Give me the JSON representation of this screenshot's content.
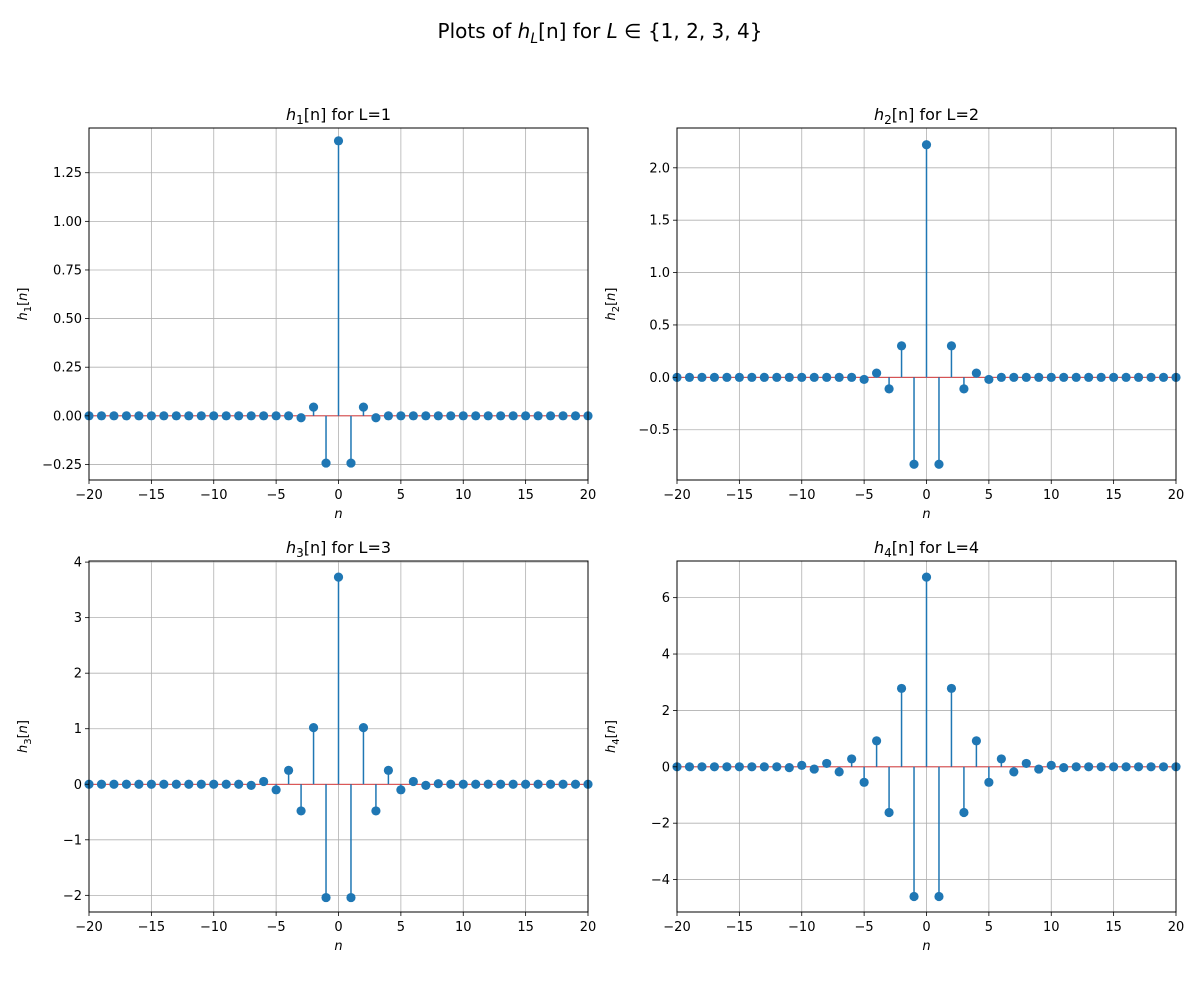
{
  "figure": {
    "title_prefix": "Plots of ",
    "title_h": "h",
    "title_sub": "L",
    "title_bracket": "[n]",
    "title_for": " for ",
    "title_var": "L",
    "title_set": " ∈ {1, 2, 3, 4}"
  },
  "chart_data": [
    {
      "type": "stem",
      "title_sub": "1",
      "title_suffix": "[n] for L=1",
      "ylabel_sub": "1",
      "xlabel": "n",
      "xlim": [
        -20,
        20
      ],
      "ylim": [
        -0.33,
        1.48
      ],
      "xticks": [
        -20,
        -15,
        -10,
        -5,
        0,
        5,
        10,
        15,
        20
      ],
      "xtick_labels": [
        "−20",
        "−15",
        "−10",
        "−5",
        "0",
        "5",
        "10",
        "15",
        "20"
      ],
      "yticks": [
        -0.25,
        0,
        0.25,
        0.5,
        0.75,
        1,
        1.25
      ],
      "ytick_labels": [
        "−0.25",
        "0.00",
        "0.25",
        "0.50",
        "0.75",
        "1.00",
        "1.25"
      ],
      "grid": true,
      "color": "#1f77b4",
      "x": [
        -20,
        -19,
        -18,
        -17,
        -16,
        -15,
        -14,
        -13,
        -12,
        -11,
        -10,
        -9,
        -8,
        -7,
        -6,
        -5,
        -4,
        -3,
        -2,
        -1,
        0,
        1,
        2,
        3,
        4,
        5,
        6,
        7,
        8,
        9,
        10,
        11,
        12,
        13,
        14,
        15,
        16,
        17,
        18,
        19,
        20
      ],
      "y": [
        0,
        0,
        0,
        0,
        0,
        0,
        0,
        0,
        0,
        0,
        0,
        0,
        0,
        0,
        0,
        0,
        0,
        -0.01,
        0.045,
        -0.243,
        1.414,
        -0.243,
        0.045,
        -0.01,
        0,
        0,
        0,
        0,
        0,
        0,
        0,
        0,
        0,
        0,
        0,
        0,
        0,
        0,
        0,
        0,
        0
      ]
    },
    {
      "type": "stem",
      "title_sub": "2",
      "title_suffix": "[n] for L=2",
      "ylabel_sub": "2",
      "xlabel": "n",
      "xlim": [
        -20,
        20
      ],
      "ylim": [
        -0.98,
        2.38
      ],
      "xticks": [
        -20,
        -15,
        -10,
        -5,
        0,
        5,
        10,
        15,
        20
      ],
      "xtick_labels": [
        "−20",
        "−15",
        "−10",
        "−5",
        "0",
        "5",
        "10",
        "15",
        "20"
      ],
      "yticks": [
        -0.5,
        0,
        0.5,
        1,
        1.5,
        2
      ],
      "ytick_labels": [
        "−0.5",
        "0.0",
        "0.5",
        "1.0",
        "1.5",
        "2.0"
      ],
      "grid": true,
      "color": "#1f77b4",
      "x": [
        -20,
        -19,
        -18,
        -17,
        -16,
        -15,
        -14,
        -13,
        -12,
        -11,
        -10,
        -9,
        -8,
        -7,
        -6,
        -5,
        -4,
        -3,
        -2,
        -1,
        0,
        1,
        2,
        3,
        4,
        5,
        6,
        7,
        8,
        9,
        10,
        11,
        12,
        13,
        14,
        15,
        16,
        17,
        18,
        19,
        20
      ],
      "y": [
        0,
        0,
        0,
        0,
        0,
        0,
        0,
        0,
        0,
        0,
        0,
        0,
        0,
        0,
        0,
        -0.02,
        0.04,
        -0.11,
        0.3,
        -0.83,
        2.22,
        -0.83,
        0.3,
        -0.11,
        0.04,
        -0.02,
        0,
        0,
        0,
        0,
        0,
        0,
        0,
        0,
        0,
        0,
        0,
        0,
        0,
        0,
        0
      ]
    },
    {
      "type": "stem",
      "title_sub": "3",
      "title_suffix": "[n] for L=3",
      "ylabel_sub": "3",
      "xlabel": "n",
      "xlim": [
        -20,
        20
      ],
      "ylim": [
        -2.3,
        4.02
      ],
      "xticks": [
        -20,
        -15,
        -10,
        -5,
        0,
        5,
        10,
        15,
        20
      ],
      "xtick_labels": [
        "−20",
        "−15",
        "−10",
        "−5",
        "0",
        "5",
        "10",
        "15",
        "20"
      ],
      "yticks": [
        -2,
        -1,
        0,
        1,
        2,
        3,
        4
      ],
      "ytick_labels": [
        "−2",
        "−1",
        "0",
        "1",
        "2",
        "3",
        "4"
      ],
      "grid": true,
      "color": "#1f77b4",
      "x": [
        -20,
        -19,
        -18,
        -17,
        -16,
        -15,
        -14,
        -13,
        -12,
        -11,
        -10,
        -9,
        -8,
        -7,
        -6,
        -5,
        -4,
        -3,
        -2,
        -1,
        0,
        1,
        2,
        3,
        4,
        5,
        6,
        7,
        8,
        9,
        10,
        11,
        12,
        13,
        14,
        15,
        16,
        17,
        18,
        19,
        20
      ],
      "y": [
        0,
        0,
        0,
        0,
        0,
        0,
        0,
        0,
        0,
        0,
        0,
        0,
        0,
        -0.02,
        0.05,
        -0.1,
        0.25,
        -0.48,
        1.02,
        -2.04,
        3.73,
        -2.04,
        1.02,
        -0.48,
        0.25,
        -0.1,
        0.05,
        -0.02,
        0.01,
        0,
        0,
        0,
        0,
        0,
        0,
        0,
        0,
        0,
        0,
        0,
        0
      ]
    },
    {
      "type": "stem",
      "title_sub": "4",
      "title_suffix": "[n] for L=4",
      "ylabel_sub": "4",
      "xlabel": "n",
      "xlim": [
        -20,
        20
      ],
      "ylim": [
        -5.15,
        7.3
      ],
      "xticks": [
        -20,
        -15,
        -10,
        -5,
        0,
        5,
        10,
        15,
        20
      ],
      "xtick_labels": [
        "−20",
        "−15",
        "−10",
        "−5",
        "0",
        "5",
        "10",
        "15",
        "20"
      ],
      "yticks": [
        -4,
        -2,
        0,
        2,
        4,
        6
      ],
      "ytick_labels": [
        "−4",
        "−2",
        "0",
        "2",
        "4",
        "6"
      ],
      "grid": true,
      "color": "#1f77b4",
      "x": [
        -20,
        -19,
        -18,
        -17,
        -16,
        -15,
        -14,
        -13,
        -12,
        -11,
        -10,
        -9,
        -8,
        -7,
        -6,
        -5,
        -4,
        -3,
        -2,
        -1,
        0,
        1,
        2,
        3,
        4,
        5,
        6,
        7,
        8,
        9,
        10,
        11,
        12,
        13,
        14,
        15,
        16,
        17,
        18,
        19,
        20
      ],
      "y": [
        0,
        0,
        0,
        0,
        0,
        0,
        0,
        0,
        0,
        -0.03,
        0.05,
        -0.08,
        0.12,
        -0.18,
        0.28,
        -0.55,
        0.92,
        -1.62,
        2.78,
        -4.6,
        6.73,
        -4.6,
        2.78,
        -1.62,
        0.92,
        -0.55,
        0.28,
        -0.18,
        0.12,
        -0.08,
        0.05,
        -0.03,
        0,
        0,
        0,
        0,
        0,
        0,
        0,
        0,
        0
      ]
    }
  ]
}
